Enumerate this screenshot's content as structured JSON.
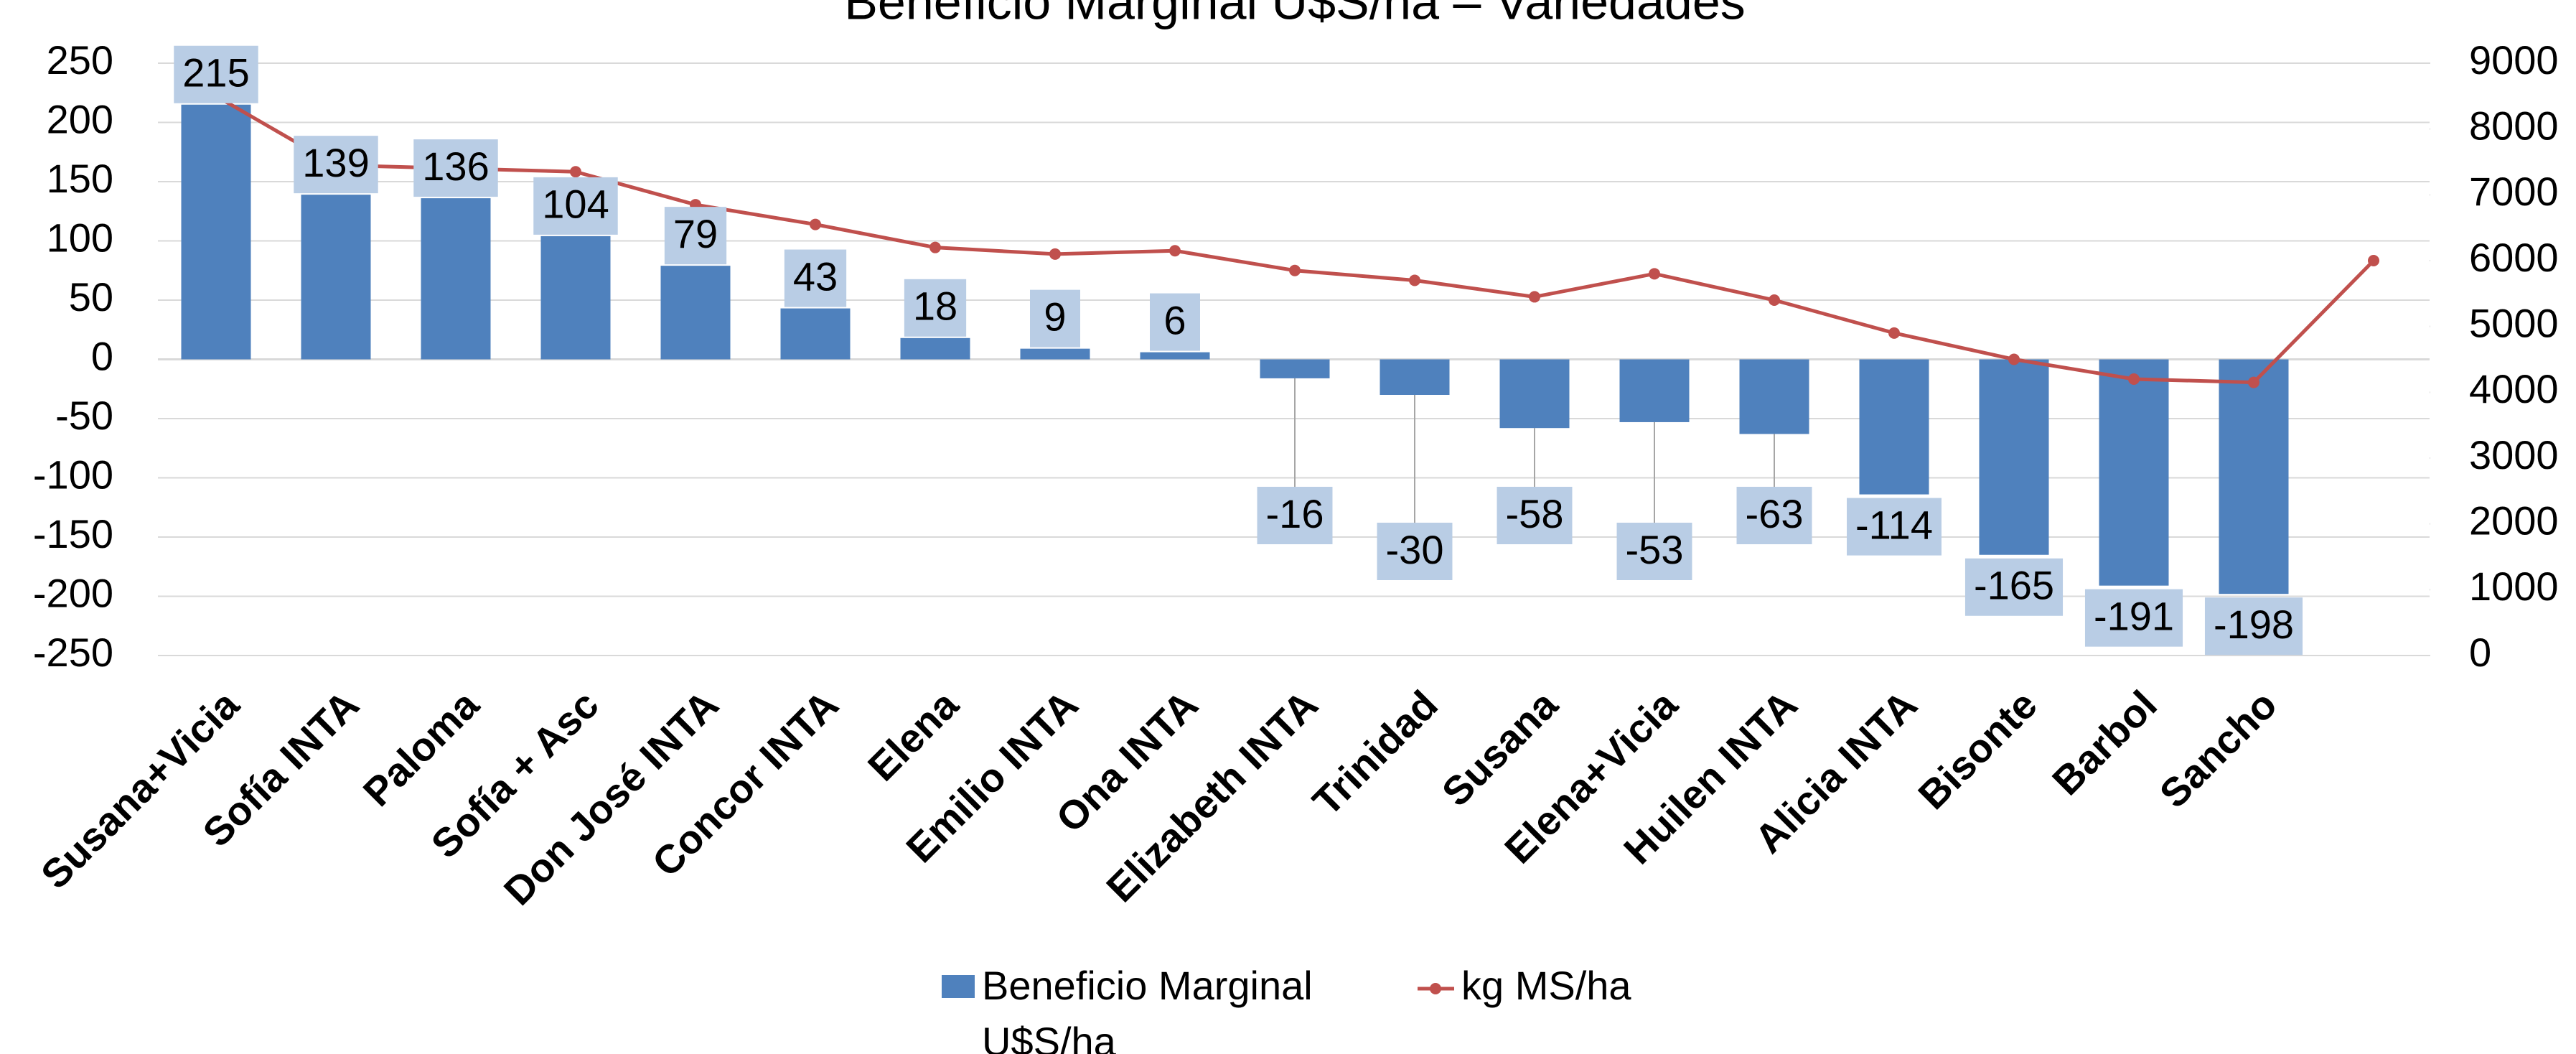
{
  "chart_data": {
    "type": "bar_line",
    "title": "Beneficio Marginal U$S/ha – Variedades",
    "categories": [
      "Susana+Vicia",
      "Sofía INTA",
      "Paloma",
      "Sofía + Asc",
      "Don José INTA",
      "Concor INTA",
      "Elena",
      "Emilio INTA",
      "Ona INTA",
      "Elizabeth INTA",
      "Trinidad",
      "Susana",
      "Elena+Vicia",
      "Huilen INTA",
      "Alicia INTA",
      "Bisonte",
      "Barbol",
      "Sancho",
      null
    ],
    "series": [
      {
        "name": "Beneficio Marginal U$S/ha",
        "type": "bar",
        "color": "#4f81bd",
        "values": [
          215,
          139,
          136,
          104,
          79,
          43,
          18,
          9,
          6,
          -16,
          -30,
          -58,
          -53,
          -63,
          -114,
          -165,
          -191,
          -198,
          null
        ]
      },
      {
        "name": "kg MS/ha",
        "type": "line",
        "axis": "y2",
        "color": "#c0504d",
        "values": [
          8500,
          7450,
          7400,
          7350,
          6850,
          6550,
          6200,
          6100,
          6150,
          5850,
          5700,
          5450,
          5800,
          5400,
          4900,
          4500,
          4200,
          4150,
          6000
        ]
      }
    ],
    "ylim": [
      -250,
      250
    ],
    "yticks": [
      -250,
      -200,
      -150,
      -100,
      -50,
      0,
      50,
      100,
      150,
      200,
      250
    ],
    "y2lim": [
      0,
      9000
    ],
    "y2ticks": [
      0,
      1000,
      2000,
      3000,
      4000,
      5000,
      6000,
      7000,
      8000,
      9000
    ],
    "grid": true,
    "legend": "bottom"
  }
}
